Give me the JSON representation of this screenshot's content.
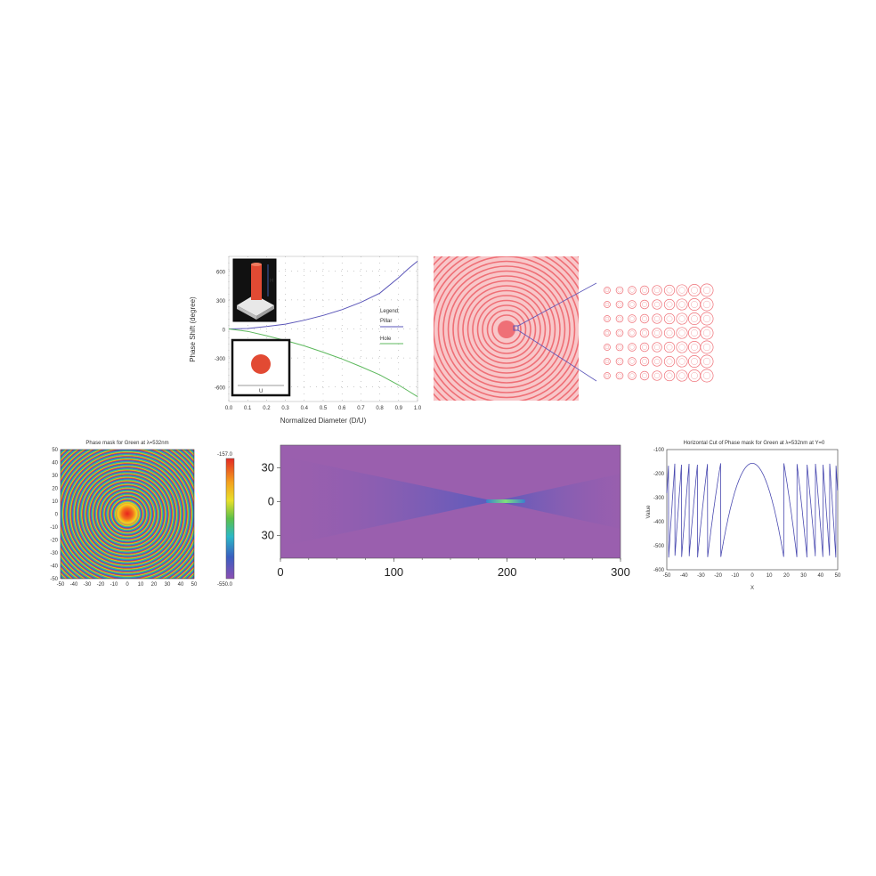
{
  "chart_data": [
    {
      "id": "phase-shift",
      "type": "line",
      "title": "",
      "xlabel": "Normalized Diameter (D/U)",
      "ylabel": "Phase Shift (degree)",
      "xlim": [
        0,
        1.0
      ],
      "ylim": [
        -750,
        750
      ],
      "xticks": [
        "0.0",
        "0.1",
        "0.2",
        "0.3",
        "0.4",
        "0.5",
        "0.6",
        "0.7",
        "0.8",
        "0.9",
        "1.0"
      ],
      "yticks": [
        "600",
        "300",
        "0",
        "-300",
        "-600"
      ],
      "grid": true,
      "legend": {
        "title": "Legend:",
        "placement": "right",
        "entries": [
          "Pillar",
          "Hole"
        ]
      },
      "inset_labels": {
        "height": "H",
        "period": "U"
      },
      "x": [
        0.0,
        0.1,
        0.2,
        0.3,
        0.4,
        0.5,
        0.6,
        0.7,
        0.8,
        0.9,
        0.95,
        1.0
      ],
      "series": [
        {
          "name": "Pillar",
          "color": "#5a55b8",
          "values": [
            0,
            5,
            25,
            50,
            90,
            140,
            200,
            275,
            370,
            530,
            620,
            700
          ]
        },
        {
          "name": "Hole",
          "color": "#5cb85c",
          "values": [
            0,
            -25,
            -70,
            -120,
            -175,
            -240,
            -310,
            -390,
            -475,
            -580,
            -640,
            -700
          ]
        }
      ]
    },
    {
      "id": "metalens-layout",
      "type": "heatmap",
      "title": "",
      "colors": {
        "ring": "#ef6f76",
        "background": "#f8c7c9",
        "zoom": "#5a55b8"
      }
    },
    {
      "id": "phase-mask",
      "type": "heatmap",
      "title": "Phase mask for Green at λ=532nm",
      "xlim": [
        -50,
        50
      ],
      "ylim": [
        -50,
        50
      ],
      "xticks": [
        "-50",
        "-40",
        "-30",
        "-20",
        "-10",
        "0",
        "10",
        "20",
        "30",
        "40",
        "50"
      ],
      "yticks": [
        "50",
        "40",
        "30",
        "20",
        "10",
        "0",
        "-10",
        "-20",
        "-30",
        "-40",
        "-50"
      ],
      "colorbar": {
        "max_label": "-157.0",
        "min_label": "-550.0"
      }
    },
    {
      "id": "intensity-xz",
      "type": "heatmap",
      "title": "",
      "xlim": [
        0,
        300
      ],
      "xticks": [
        "0",
        "100",
        "200",
        "300"
      ],
      "yticks": [
        "30",
        "0",
        "30"
      ],
      "colors": {
        "background": "#9a5fae",
        "cone": "#6a58b8",
        "focus": "#4ad0c0"
      }
    },
    {
      "id": "horizontal-cut",
      "type": "line",
      "title": "Horizontal Cut of Phase mask for Green at λ=532nm at Y=0",
      "xlabel": "X",
      "ylabel": "Value",
      "xlim": [
        -50,
        50
      ],
      "ylim": [
        -600,
        -100
      ],
      "xticks": [
        "-50",
        "-40",
        "-30",
        "-20",
        "-10",
        "0",
        "10",
        "20",
        "30",
        "40",
        "50"
      ],
      "yticks": [
        "-100",
        "-200",
        "-300",
        "-400",
        "-500",
        "-600"
      ],
      "series": [
        {
          "name": "",
          "color": "#4a4ab0",
          "min": -550,
          "max": -157
        }
      ]
    }
  ]
}
